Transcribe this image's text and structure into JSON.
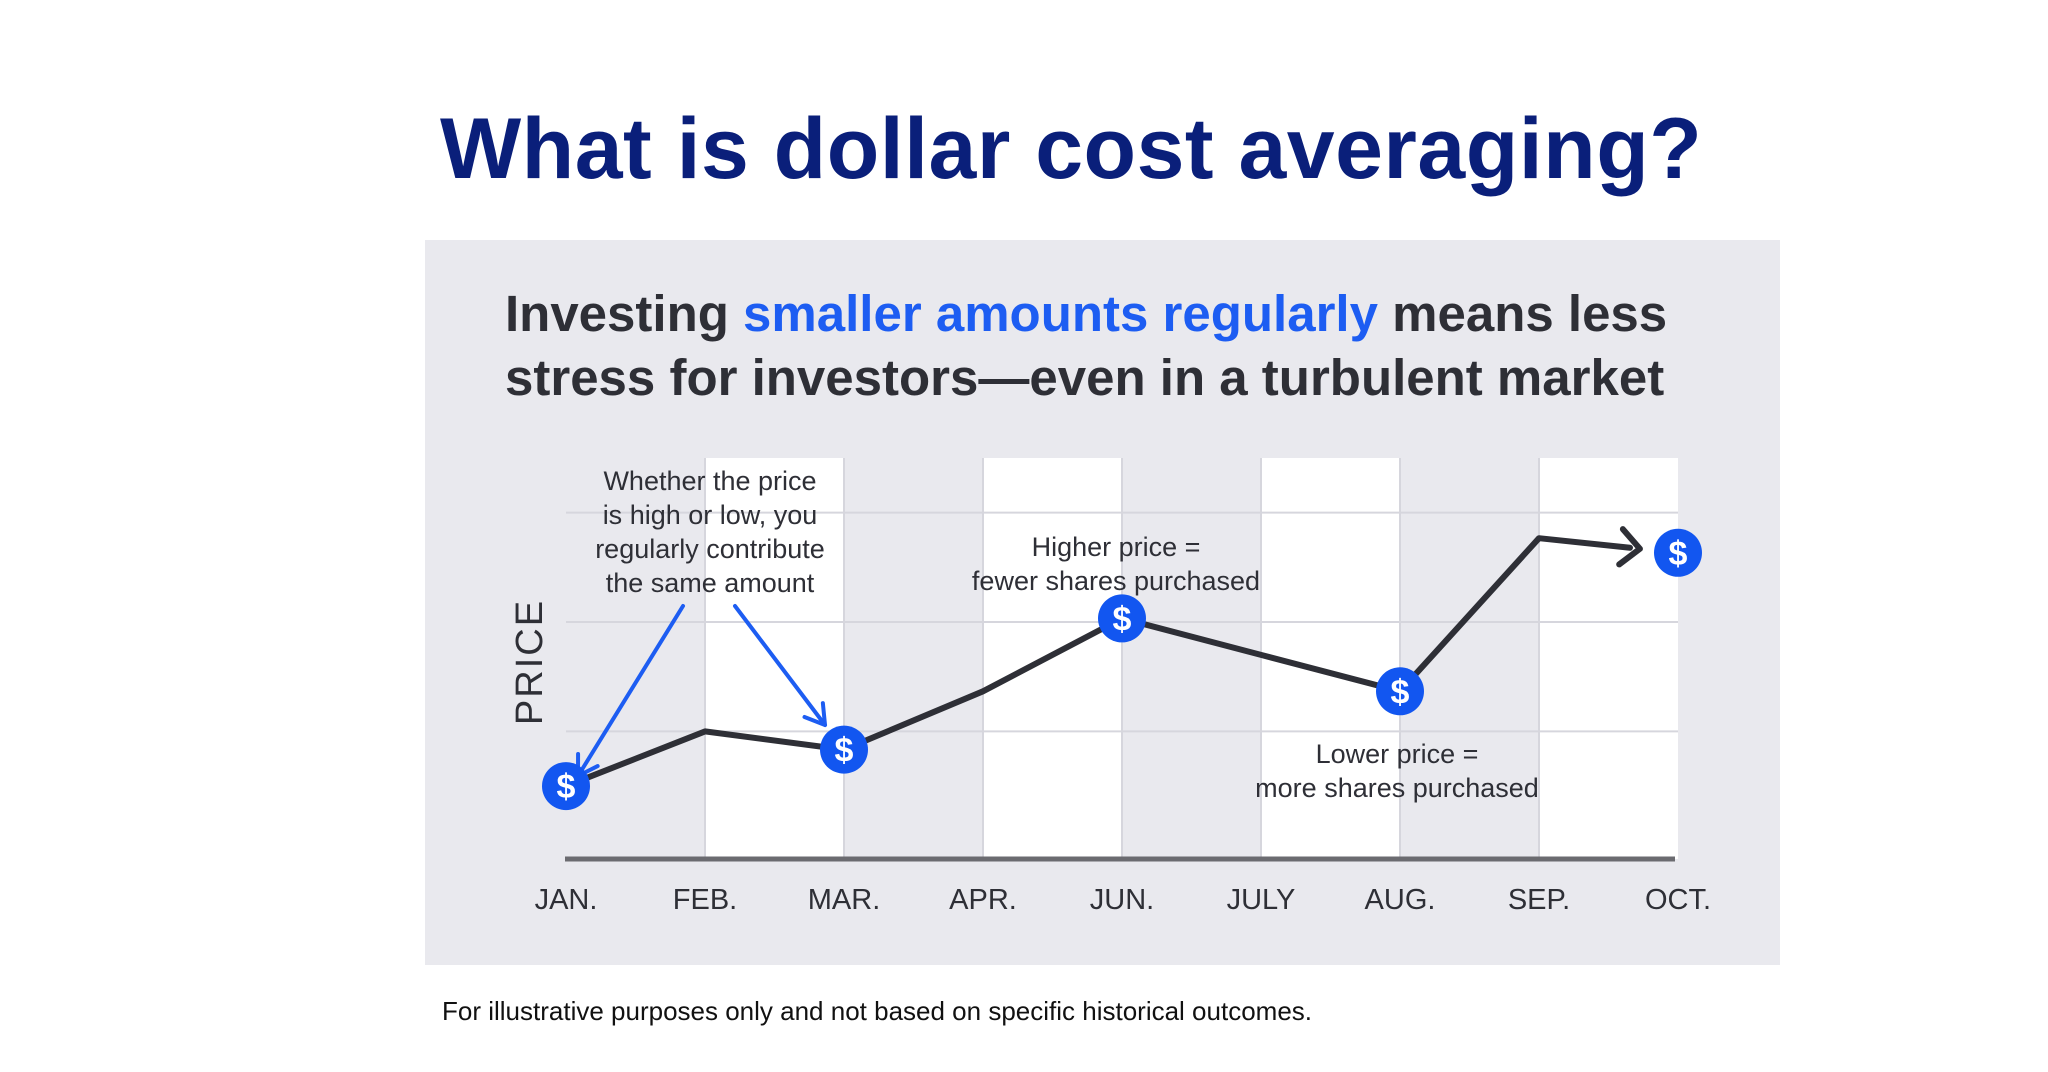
{
  "page": {
    "title": "What is dollar cost averaging?",
    "subtitle_part1": "Investing ",
    "subtitle_highlight": "smaller amounts regularly",
    "subtitle_part2": " means less",
    "subtitle_line2": "stress for investors—even in a turbulent market",
    "footnote": "For illustrative purposes only and not based on specific historical outcomes."
  },
  "colors": {
    "title": "#0a1f7a",
    "highlight": "#1d5df2",
    "line": "#2e2f36",
    "marker": "#1256f0",
    "arrow": "#1d5df2",
    "panel": "#e9e9ee"
  },
  "chart_data": {
    "type": "line",
    "title": "",
    "ylabel": "PRICE",
    "xlabel": "",
    "categories": [
      "JAN.",
      "FEB.",
      "MAR.",
      "APR.",
      "JUN.",
      "JULY",
      "AUG.",
      "SEP.",
      "OCT."
    ],
    "values": [
      1.0,
      2.5,
      2.0,
      3.6,
      5.6,
      4.6,
      3.6,
      7.8,
      7.4
    ],
    "ylim": [
      -1,
      10
    ],
    "grid": true,
    "marker_indices": [
      0,
      2,
      4,
      6,
      8
    ],
    "marker_symbol": "$",
    "annotations": [
      {
        "lines": [
          "Whether the price",
          "is high or low, you",
          "regularly contribute",
          "the same amount"
        ],
        "arrow_targets": [
          0,
          2
        ]
      },
      {
        "lines": [
          "Higher price =",
          "fewer shares purchased"
        ]
      },
      {
        "lines": [
          "Lower price =",
          "more shares purchased"
        ]
      }
    ]
  }
}
